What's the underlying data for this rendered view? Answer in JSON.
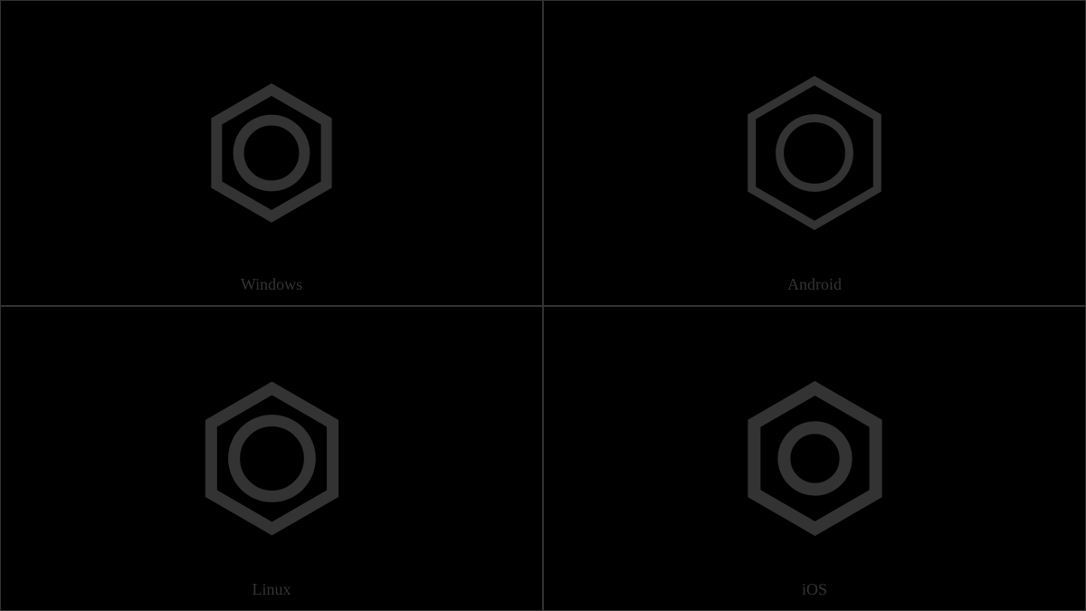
{
  "background_color": "#000000",
  "grid_border_color": "#333333",
  "label_color": "#333333",
  "label_fontsize": 18,
  "glyph_stroke_color": "#333333",
  "cells": [
    {
      "label": "Windows",
      "hexagon": {
        "stroke_width": 12,
        "size": 140,
        "circle_radius_ratio": 0.52,
        "circle_stroke_width": 12
      }
    },
    {
      "label": "Android",
      "hexagon": {
        "stroke_width": 9,
        "size": 160,
        "circle_radius_ratio": 0.48,
        "circle_stroke_width": 9
      }
    },
    {
      "label": "Linux",
      "hexagon": {
        "stroke_width": 13,
        "size": 155,
        "circle_radius_ratio": 0.54,
        "circle_stroke_width": 13
      }
    },
    {
      "label": "iOS",
      "hexagon": {
        "stroke_width": 14,
        "size": 155,
        "circle_radius_ratio": 0.44,
        "circle_stroke_width": 14
      }
    }
  ]
}
